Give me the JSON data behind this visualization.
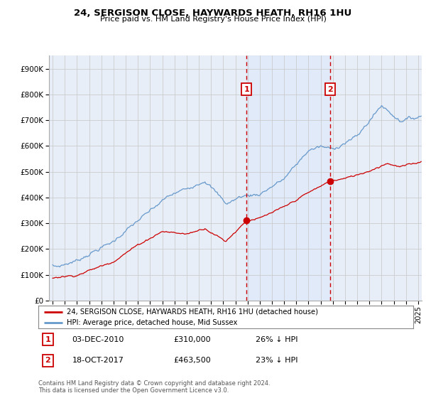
{
  "title": "24, SERGISON CLOSE, HAYWARDS HEATH, RH16 1HU",
  "subtitle": "Price paid vs. HM Land Registry's House Price Index (HPI)",
  "legend_line1": "24, SERGISON CLOSE, HAYWARDS HEATH, RH16 1HU (detached house)",
  "legend_line2": "HPI: Average price, detached house, Mid Sussex",
  "annotation1_date": "03-DEC-2010",
  "annotation1_price": "£310,000",
  "annotation1_hpi": "26% ↓ HPI",
  "annotation1_year": 2010.92,
  "annotation1_value": 310000,
  "annotation2_date": "18-OCT-2017",
  "annotation2_price": "£463,500",
  "annotation2_hpi": "23% ↓ HPI",
  "annotation2_year": 2017.79,
  "annotation2_value": 463500,
  "ylabel_ticks": [
    "£0",
    "£100K",
    "£200K",
    "£300K",
    "£400K",
    "£500K",
    "£600K",
    "£700K",
    "£800K",
    "£900K"
  ],
  "ytick_values": [
    0,
    100000,
    200000,
    300000,
    400000,
    500000,
    600000,
    700000,
    800000,
    900000
  ],
  "ylim": [
    0,
    950000
  ],
  "xlim_start": 1994.7,
  "xlim_end": 2025.3,
  "footer": "Contains HM Land Registry data © Crown copyright and database right 2024.\nThis data is licensed under the Open Government Licence v3.0.",
  "line_color_red": "#cc0000",
  "line_color_blue": "#6699cc",
  "grid_color": "#cccccc",
  "background_color": "#ffffff",
  "plot_bg_color": "#e8eef8"
}
